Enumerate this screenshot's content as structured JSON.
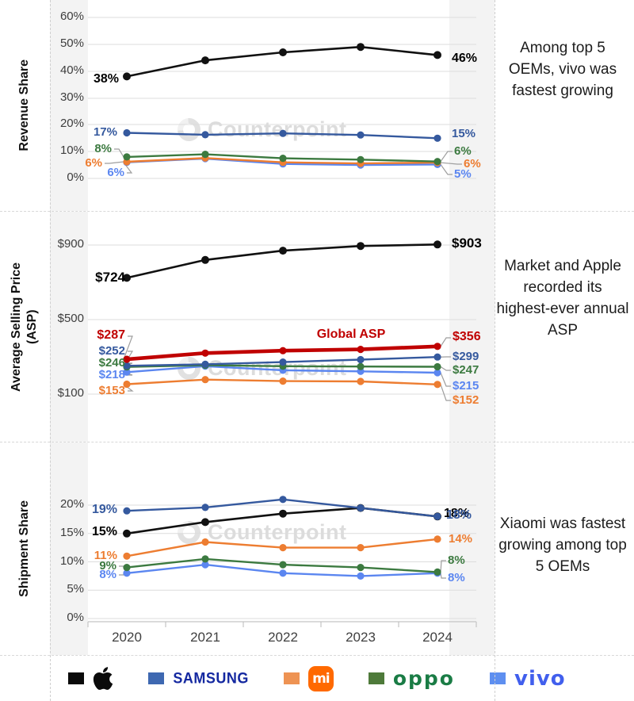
{
  "watermark": "Counterpoint",
  "x_labels": [
    "2020",
    "2021",
    "2022",
    "2023",
    "2024"
  ],
  "side_notes": [
    "Among top 5 OEMs, vivo was fastest growing",
    "Market and Apple recorded its highest-ever annual ASP",
    "Xiaomi was fastest growing among top 5 OEMs"
  ],
  "colors": {
    "apple": "#111111",
    "samsung": "#35599E",
    "xiaomi": "#ED7D31",
    "oppo": "#3C7A40",
    "vivo": "#5B86F0",
    "global_asp": "#C00000",
    "grid": "#dcdcdc",
    "axis": "#c4c4c4",
    "leader": "#9e9e9e",
    "panel_bg": "#f3f3f3",
    "watermark": "#d7d7d7"
  },
  "chart_data": [
    {
      "type": "line",
      "ylabel": "Revenue Share",
      "ytick_labels": [
        "60%",
        "50%",
        "40%",
        "30%",
        "20%",
        "10%",
        "0%"
      ],
      "ylim": [
        0,
        60
      ],
      "x": [
        "2020",
        "2021",
        "2022",
        "2023",
        "2024"
      ],
      "series": [
        {
          "id": "apple",
          "name": "Apple",
          "values": [
            38,
            44,
            47,
            49,
            46
          ],
          "first_label": "38%",
          "last_label": "46%"
        },
        {
          "id": "samsung",
          "name": "Samsung",
          "values": [
            17,
            16.3,
            16.8,
            16.2,
            15
          ],
          "first_label": "17%",
          "last_label": "15%"
        },
        {
          "id": "oppo",
          "name": "OPPO",
          "values": [
            8,
            9,
            7.5,
            7,
            6.3
          ],
          "first_label": "8%",
          "last_label": "6%"
        },
        {
          "id": "xiaomi",
          "name": "Xiaomi",
          "values": [
            6.2,
            7.6,
            6,
            5.6,
            5.9
          ],
          "first_label": "6%",
          "last_label": "6%"
        },
        {
          "id": "vivo",
          "name": "vivo",
          "values": [
            6,
            7.4,
            5.4,
            5,
            5.2
          ],
          "first_label": "6%",
          "last_label": "5%"
        }
      ]
    },
    {
      "type": "line",
      "ylabel": "Average Selling Price (ASP)",
      "ytick_labels": [
        "$900",
        "$500",
        "$100"
      ],
      "ylim": [
        100,
        1000
      ],
      "x": [
        "2020",
        "2021",
        "2022",
        "2023",
        "2024"
      ],
      "series": [
        {
          "id": "apple",
          "name": "Apple",
          "values": [
            724,
            820,
            870,
            895,
            903
          ],
          "first_label": "$724",
          "last_label": "$903"
        },
        {
          "id": "global_asp",
          "name": "Global ASP",
          "line_label": "Global ASP",
          "values": [
            287,
            320,
            333,
            340,
            356
          ],
          "first_label": "$287",
          "last_label": "$356"
        },
        {
          "id": "samsung",
          "name": "Samsung",
          "values": [
            252,
            260,
            272,
            285,
            299
          ],
          "first_label": "$252",
          "last_label": "$299"
        },
        {
          "id": "oppo",
          "name": "OPPO",
          "values": [
            246,
            255,
            250,
            248,
            247
          ],
          "first_label": "$246",
          "last_label": "$247"
        },
        {
          "id": "vivo",
          "name": "vivo",
          "values": [
            218,
            250,
            228,
            222,
            215
          ],
          "first_label": "$218",
          "last_label": "$215"
        },
        {
          "id": "xiaomi",
          "name": "Xiaomi",
          "values": [
            153,
            178,
            170,
            168,
            152
          ],
          "first_label": "$153",
          "last_label": "$152"
        }
      ]
    },
    {
      "type": "line",
      "ylabel": "Shipment Share",
      "ytick_labels": [
        "20%",
        "15%",
        "10%",
        "5%",
        "0%"
      ],
      "ylim": [
        0,
        20
      ],
      "x": [
        "2020",
        "2021",
        "2022",
        "2023",
        "2024"
      ],
      "series": [
        {
          "id": "samsung",
          "name": "Samsung",
          "values": [
            19,
            19.6,
            21,
            19.5,
            18
          ],
          "first_label": "19%",
          "last_label": "18%"
        },
        {
          "id": "apple",
          "name": "Apple",
          "values": [
            15,
            17,
            18.5,
            19.5,
            18
          ],
          "first_label": "15%",
          "last_label": "18%"
        },
        {
          "id": "xiaomi",
          "name": "Xiaomi",
          "values": [
            11,
            13.5,
            12.5,
            12.5,
            14
          ],
          "first_label": "11%",
          "last_label": "14%"
        },
        {
          "id": "oppo",
          "name": "OPPO",
          "values": [
            9,
            10.5,
            9.5,
            9,
            8.2
          ],
          "first_label": "9%",
          "last_label": "8%"
        },
        {
          "id": "vivo",
          "name": "vivo",
          "values": [
            8,
            9.5,
            8,
            7.5,
            8
          ],
          "first_label": "8%",
          "last_label": "8%"
        }
      ]
    }
  ],
  "legend": {
    "samsung_label": "SAMSUNG",
    "xiaomi_badge": "mi",
    "oppo_label": "oppo",
    "vivo_label": "vivo"
  }
}
